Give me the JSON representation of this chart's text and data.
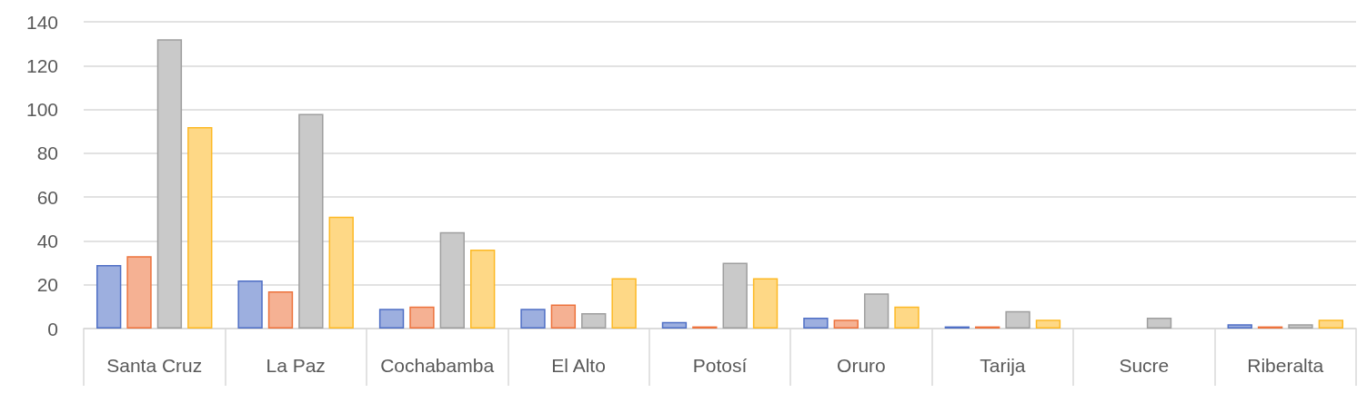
{
  "chart_data": {
    "type": "bar",
    "categories": [
      "Santa Cruz",
      "La Paz",
      "Cochabamba",
      "El Alto",
      "Potosí",
      "Oruro",
      "Tarija",
      "Sucre",
      "Riberalta"
    ],
    "series": [
      {
        "color": "#9dafdf",
        "values": [
          29,
          22,
          9,
          9,
          3,
          5,
          1,
          null,
          2
        ]
      },
      {
        "color": "#f5b193",
        "values": [
          33,
          17,
          10,
          11,
          1,
          4,
          1,
          null,
          1
        ]
      },
      {
        "color": "#c9c9c9",
        "values": [
          132,
          98,
          44,
          7,
          30,
          16,
          8,
          5,
          2
        ]
      },
      {
        "color": "#fed886",
        "values": [
          92,
          51,
          36,
          23,
          23,
          10,
          4,
          null,
          4
        ]
      }
    ],
    "ylim": [
      0,
      140
    ],
    "yticks": [
      0,
      20,
      40,
      60,
      80,
      100,
      120,
      140
    ],
    "grid": "y"
  }
}
